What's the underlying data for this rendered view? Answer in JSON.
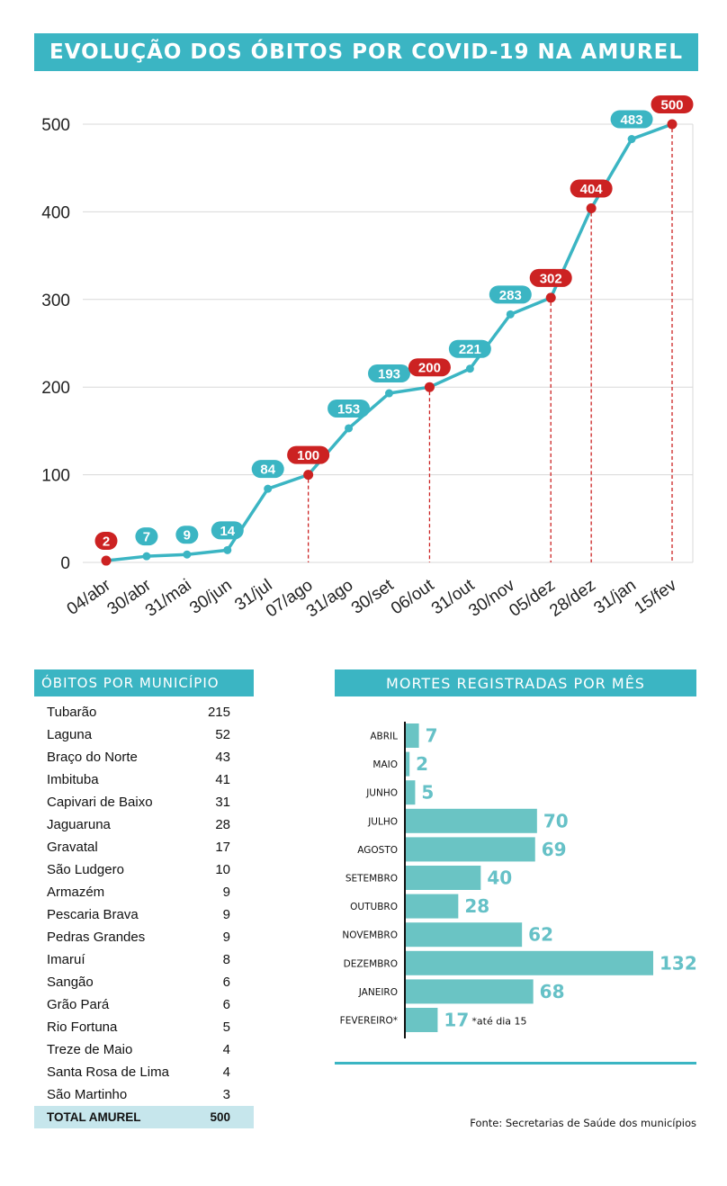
{
  "title": "EVOLUÇÃO DOS ÓBITOS POR COVID-19 NA AMUREL",
  "colors": {
    "teal": "#3bb5c3",
    "red": "#cc2222",
    "bar": "#6ac4c4",
    "bar_label": "#66c1c7",
    "total_bg": "#c6e6ec"
  },
  "chart_data": [
    {
      "type": "line",
      "title": "EVOLUÇÃO DOS ÓBITOS POR COVID-19 NA AMUREL",
      "xlabel": "",
      "ylabel": "",
      "ylim": [
        0,
        500
      ],
      "yticks": [
        0,
        100,
        200,
        300,
        400,
        500
      ],
      "grid": true,
      "categories": [
        "04/abr",
        "30/abr",
        "31/mai",
        "30/jun",
        "31/jul",
        "07/ago",
        "31/ago",
        "30/set",
        "06/out",
        "31/out",
        "30/nov",
        "05/dez",
        "28/dez",
        "31/jan",
        "15/fev"
      ],
      "values": [
        2,
        7,
        9,
        14,
        84,
        100,
        153,
        193,
        200,
        221,
        283,
        302,
        404,
        483,
        500
      ],
      "highlighted": [
        true,
        false,
        false,
        false,
        false,
        true,
        false,
        false,
        true,
        false,
        false,
        true,
        true,
        false,
        true
      ]
    },
    {
      "type": "bar",
      "orientation": "horizontal",
      "title": "MORTES REGISTRADAS POR MÊS",
      "categories": [
        "ABRIL",
        "MAIO",
        "JUNHO",
        "JULHO",
        "AGOSTO",
        "SETEMBRO",
        "OUTUBRO",
        "NOVEMBRO",
        "DEZEMBRO",
        "JANEIRO",
        "FEVEREIRO*"
      ],
      "values": [
        7,
        2,
        5,
        70,
        69,
        40,
        28,
        62,
        132,
        68,
        17
      ],
      "annotation": "*até  dia 15"
    }
  ],
  "municipalities": {
    "title": "ÓBITOS POR MUNICÍPIO",
    "rows": [
      {
        "name": "Tubarão",
        "value": "215"
      },
      {
        "name": "Laguna",
        "value": "52"
      },
      {
        "name": "Braço do Norte",
        "value": "43"
      },
      {
        "name": "Imbituba",
        "value": "41"
      },
      {
        "name": "Capivari de Baixo",
        "value": "31"
      },
      {
        "name": "Jaguaruna",
        "value": "28"
      },
      {
        "name": "Gravatal",
        "value": "17"
      },
      {
        "name": "São Ludgero",
        "value": "10"
      },
      {
        "name": "Armazém",
        "value": "9"
      },
      {
        "name": "Pescaria Brava",
        "value": "9"
      },
      {
        "name": "Pedras Grandes",
        "value": "9"
      },
      {
        "name": "Imaruí",
        "value": "8"
      },
      {
        "name": "Sangão",
        "value": "6"
      },
      {
        "name": "Grão Pará",
        "value": "6"
      },
      {
        "name": "Rio Fortuna",
        "value": "5"
      },
      {
        "name": "Treze de Maio",
        "value": "4"
      },
      {
        "name": "Santa Rosa de Lima",
        "value": "4"
      },
      {
        "name": "São Martinho",
        "value": "3"
      }
    ],
    "total_label": "TOTAL AMUREL",
    "total_value": "500"
  },
  "source": "Fonte: Secretarias de Saúde dos municípios"
}
